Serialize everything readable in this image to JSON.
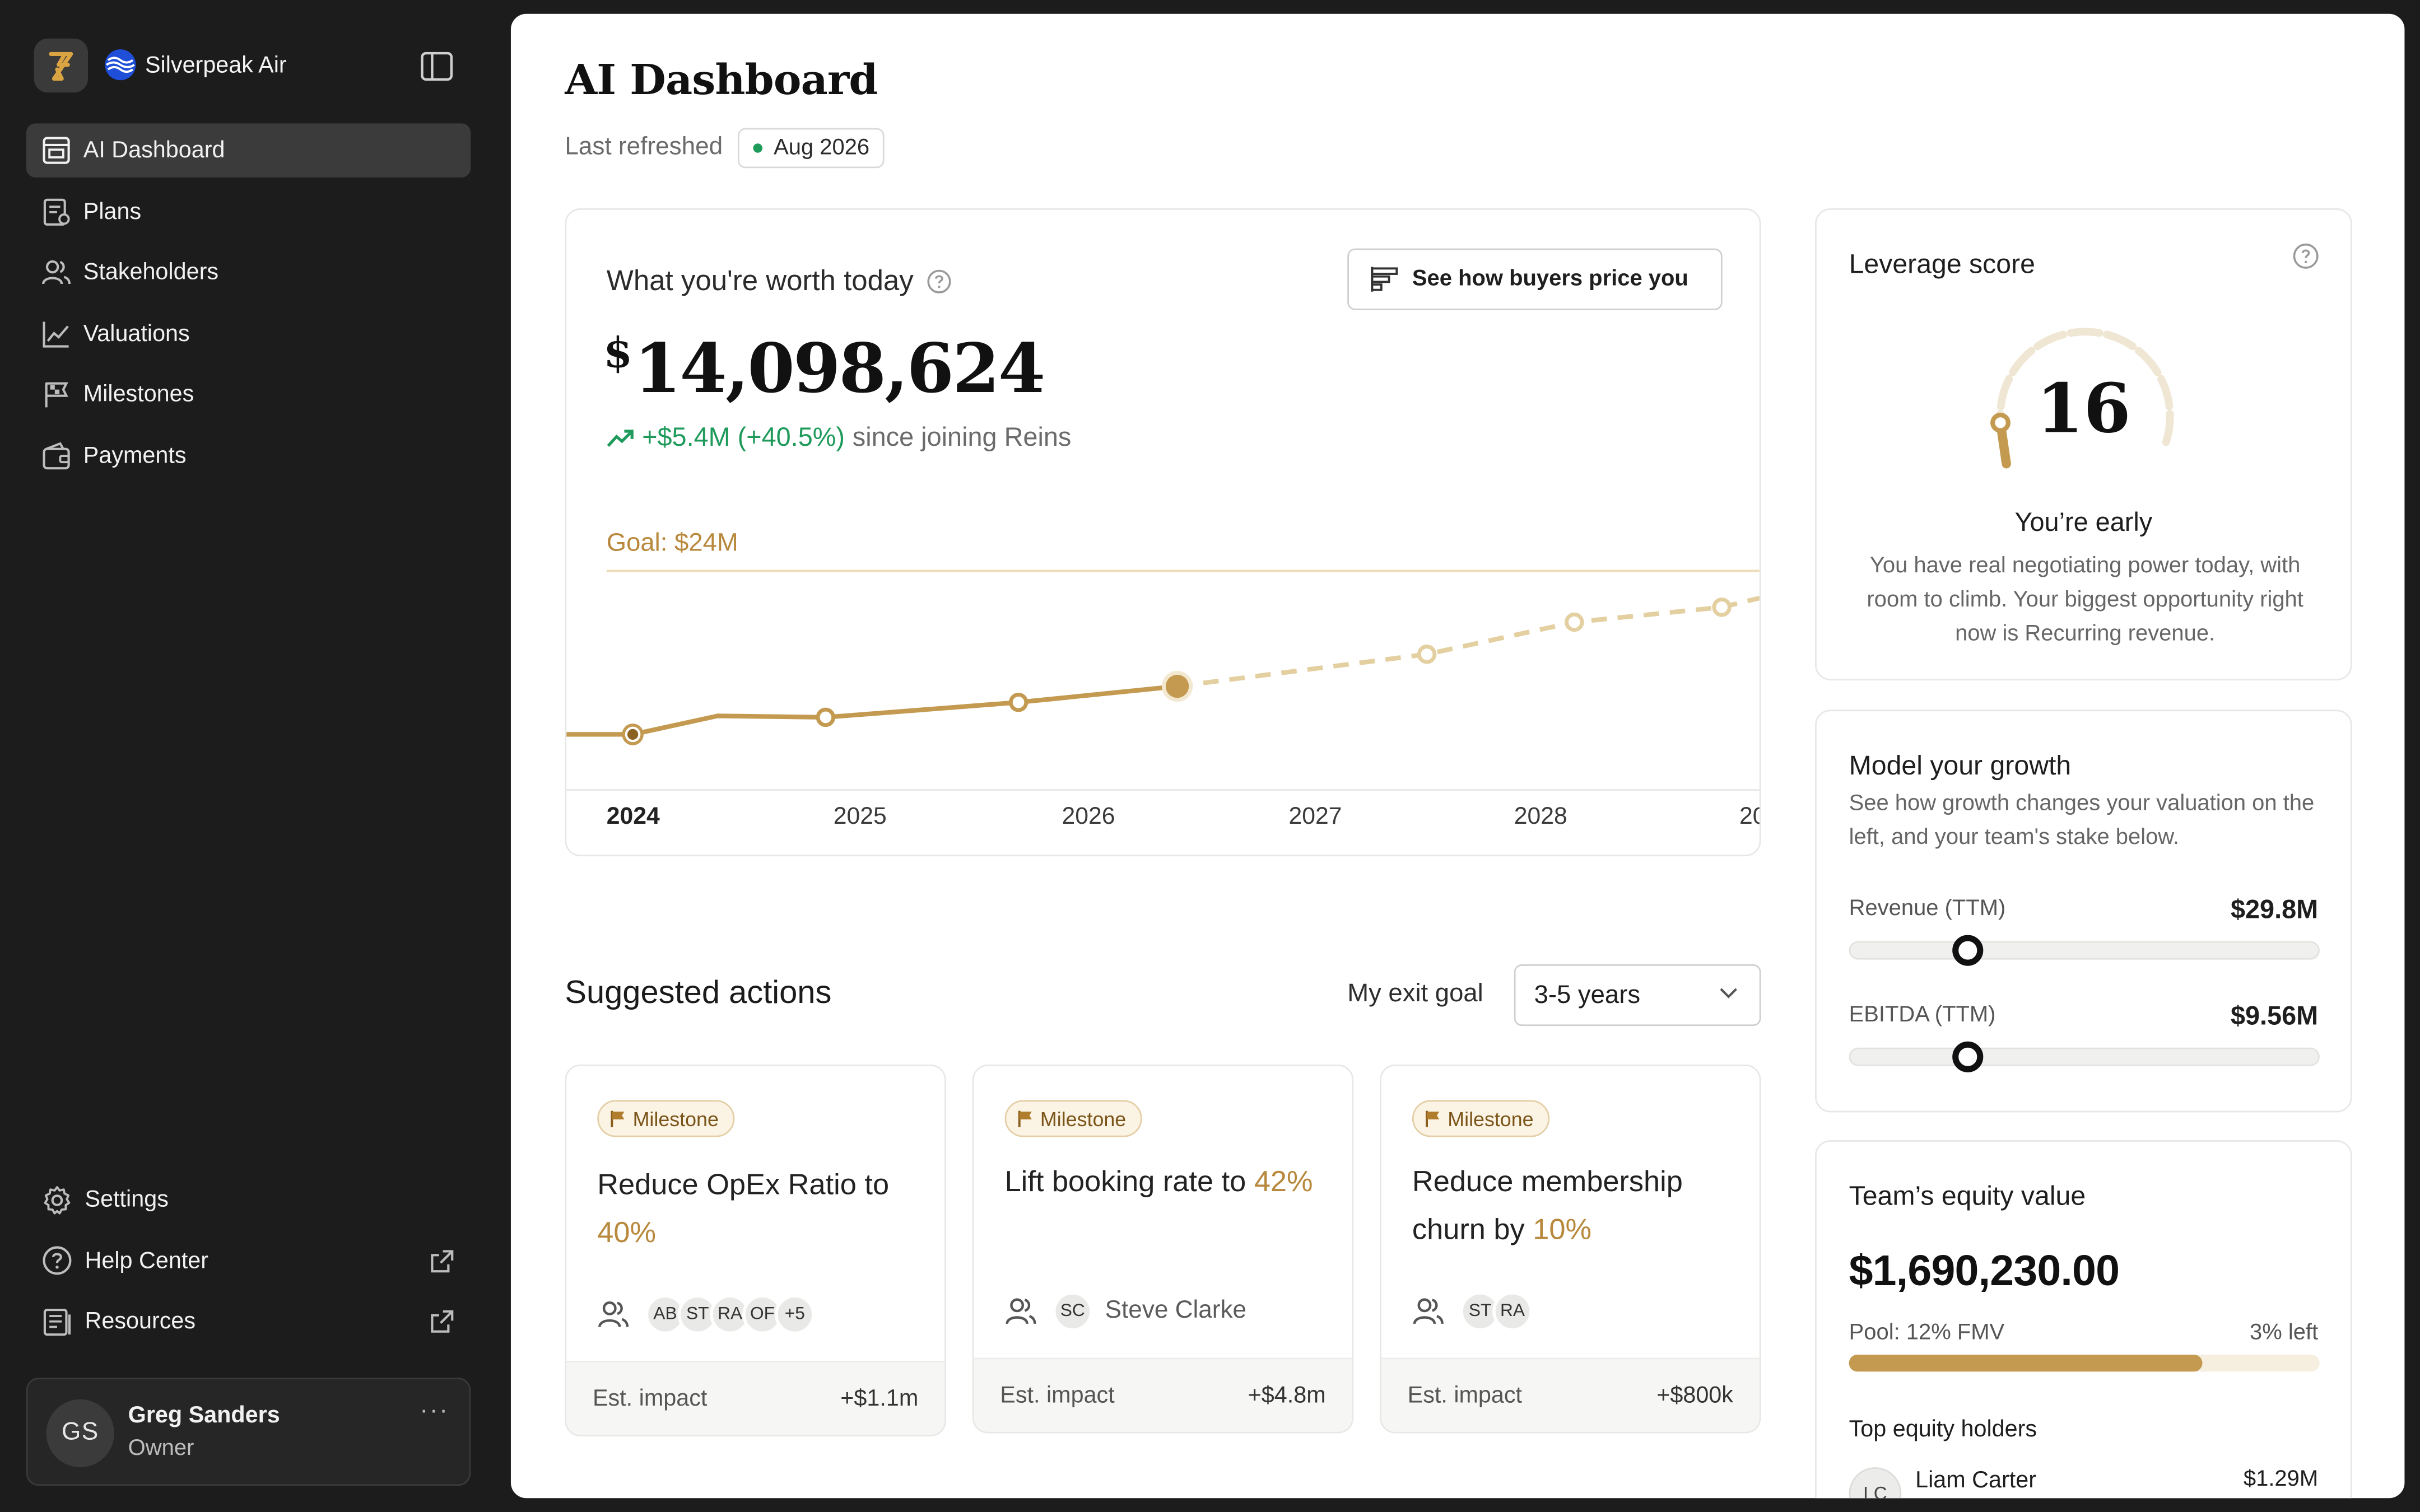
{
  "sidebar": {
    "org_name": "Silverpeak Air",
    "nav": [
      {
        "label": "AI Dashboard",
        "icon": "dashboard-icon",
        "active": true
      },
      {
        "label": "Plans",
        "icon": "plans-icon"
      },
      {
        "label": "Stakeholders",
        "icon": "stakeholders-icon"
      },
      {
        "label": "Valuations",
        "icon": "valuations-icon"
      },
      {
        "label": "Milestones",
        "icon": "milestones-icon"
      },
      {
        "label": "Payments",
        "icon": "payments-icon"
      }
    ],
    "bottom_nav": [
      {
        "label": "Settings",
        "icon": "gear-icon"
      },
      {
        "label": "Help Center",
        "icon": "help-icon",
        "external": true
      },
      {
        "label": "Resources",
        "icon": "resources-icon",
        "external": true
      }
    ],
    "user": {
      "initials": "GS",
      "name": "Greg Sanders",
      "role": "Owner",
      "more": "···"
    }
  },
  "header": {
    "title": "AI Dashboard",
    "refresh_label": "Last refreshed",
    "refresh_date": "Aug 2026"
  },
  "worth": {
    "title": "What you're worth today",
    "button": "See how buyers price you",
    "currency": "$",
    "value": "14,098,624",
    "change": "+$5.4M (+40.5%)",
    "change_suffix": "since joining Reins",
    "goal_label": "Goal: $24M"
  },
  "chart_data": {
    "type": "line",
    "x_ticks": [
      "2024",
      "2025",
      "2026",
      "2027",
      "2028",
      "20"
    ],
    "goal": 24,
    "series": [
      {
        "style": "actual",
        "points": [
          [
            2024.0,
            8.7
          ],
          [
            2024.85,
            10.3
          ],
          [
            2025.7,
            11.7
          ],
          [
            2026.4,
            13.2
          ]
        ]
      },
      {
        "style": "projected",
        "points": [
          [
            2026.4,
            13.2
          ],
          [
            2027.5,
            16.2
          ],
          [
            2028.15,
            19.2
          ],
          [
            2028.8,
            20.6
          ]
        ]
      }
    ]
  },
  "suggested": {
    "title": "Suggested actions",
    "exit_label": "My exit goal",
    "exit_value": "3-5 years",
    "actions": [
      {
        "badge": "Milestone",
        "title_pre": "Reduce OpEx Ratio to",
        "title_hl": "40%",
        "owners": [
          "AB",
          "ST",
          "RA",
          "OF",
          "+5"
        ],
        "owner_name": "",
        "impact_label": "Est. impact",
        "impact": "+$1.1m"
      },
      {
        "badge": "Milestone",
        "title_pre": "Lift booking rate to",
        "title_hl": "42%",
        "owners": [
          "SC"
        ],
        "owner_name": "Steve Clarke",
        "impact_label": "Est. impact",
        "impact": "+$4.8m"
      },
      {
        "badge": "Milestone",
        "title_pre": "Reduce membership churn by",
        "title_hl": "10%",
        "owners": [
          "ST",
          "RA"
        ],
        "owner_name": "",
        "impact_label": "Est. impact",
        "impact": "+$800k"
      }
    ]
  },
  "leverage": {
    "title": "Leverage score",
    "score": "16",
    "score_fraction": 0.16,
    "status": "You’re early",
    "description": "You have real negotiating power today, with room to climb. Your biggest opportunity right now is Recurring revenue."
  },
  "growth": {
    "title": "Model your growth",
    "description": "See how growth changes your valuation on the left, and your team's stake below.",
    "sliders": [
      {
        "label": "Revenue (TTM)",
        "value": "$29.8M",
        "position": 0.25
      },
      {
        "label": "EBITDA (TTM)",
        "value": "$9.56M",
        "position": 0.25
      }
    ]
  },
  "equity": {
    "title": "Team’s equity value",
    "value": "$1,690,230.00",
    "pool_label": "Pool: 12% FMV",
    "pool_left": "3% left",
    "pool_used_fraction": 0.75,
    "holders_title": "Top equity holders",
    "holders": [
      {
        "initials": "LC",
        "name": "Liam Carter",
        "value": "$1.29M"
      }
    ]
  },
  "colors": {
    "accent_gold": "#c39a50",
    "positive_green": "#1e9a5a",
    "sidebar_bg": "#1c1c1c"
  }
}
